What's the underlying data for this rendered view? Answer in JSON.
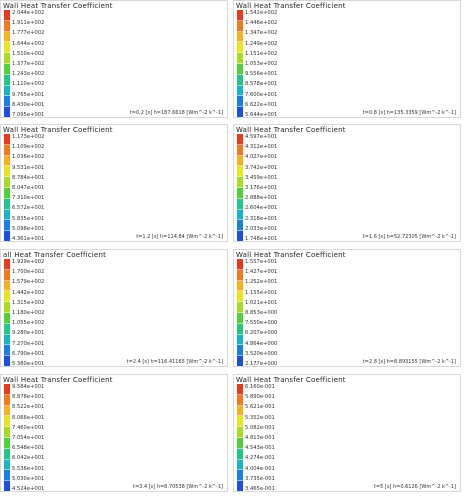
{
  "legend_colors": [
    "#e83a1d",
    "#f07a1c",
    "#f6b21e",
    "#e8e41f",
    "#a8dc24",
    "#52d03c",
    "#22c58a",
    "#18b4c8",
    "#1a7ee4",
    "#1d4fde"
  ],
  "panels": [
    {
      "title": "Wall Heat Transfer Coefficient",
      "caption": "t=0.2 [s] h=187.6618 [Wm^-2 k^-1]",
      "ticks": [
        "2.044e+002",
        "1.911e+002",
        "1.777e+002",
        "1.644e+002",
        "1.510e+002",
        "1.377e+002",
        "1.243e+002",
        "1.110e+002",
        "9.765e+001",
        "8.430e+001",
        "7.095e+001"
      ]
    },
    {
      "title": "Wall Heat Transfer Coefficient",
      "caption": "t=0.8 [s] h=135.3359 [Wm^-2 k^-1]",
      "ticks": [
        "1.542e+002",
        "1.446e+002",
        "1.347e+002",
        "1.249e+002",
        "1.151e+002",
        "1.053e+002",
        "9.556e+001",
        "8.578e+001",
        "7.600e+001",
        "6.622e+001",
        "5.644e+001"
      ]
    },
    {
      "title": "Wall Heat Transfer Coefficient",
      "caption": "t=1.2 [s] h=114.84 [Wm^-2 k^-1]",
      "ticks": [
        "1.173e+002",
        "1.109e+002",
        "1.036e+002",
        "9.531e+001",
        "8.784e+001",
        "8.047e+001",
        "7.310e+001",
        "6.572e+001",
        "5.835e+001",
        "5.098e+001",
        "4.361e+001"
      ]
    },
    {
      "title": "Wall Heat Transfer Coefficient",
      "caption": "t=1.6 [s] h=52.72305 [Wm^-2 k^-1]",
      "ticks": [
        "4.597e+001",
        "4.312e+001",
        "4.027e+001",
        "3.742e+001",
        "3.459e+001",
        "3.176e+001",
        "2.888e+001",
        "2.604e+001",
        "2.318e+001",
        "2.033e+001",
        "1.748e+001"
      ]
    },
    {
      "title": "all Heat Transfer Coefficient",
      "caption": "t=2.4 [s] h=116.41165 [Wm^-2 k^-1]",
      "ticks": [
        "1.929e+002",
        "1.700e+002",
        "1.579e+002",
        "1.442e+002",
        "1.315e+002",
        "1.180e+002",
        "1.055e+002",
        "9.280e+001",
        "7.270e+001",
        "6.790e+001",
        "5.380e+001"
      ]
    },
    {
      "title": "Wall Heat Transfer Coefficient",
      "caption": "t=2.8 [s] h=8.893155 [Wm^-2 k^-1]",
      "ticks": [
        "1.557e+001",
        "1.427e+001",
        "1.252e+001",
        "1.155e+001",
        "1.021e+001",
        "8.853e+000",
        "7.550e+000",
        "6.207e+000",
        "4.864e+000",
        "3.520e+000",
        "2.177e+000"
      ]
    },
    {
      "title": "Wall Heat Transfer Coefficient",
      "caption": "t=3.4 [s] h=8.70538 [Wm^-2 k^-1]",
      "ticks": [
        "9.584e+001",
        "8.878e+001",
        "8.522e+001",
        "8.066e+001",
        "7.460e+001",
        "7.054e+001",
        "6.548e+001",
        "6.042e+001",
        "5.536e+001",
        "5.030e+001",
        "4.524e+001"
      ]
    },
    {
      "title": "Wall Heat Transfer Coefficient",
      "caption": "t=5 [s] h=0.6126 [Wm^-2 k^-1]",
      "ticks": [
        "6.160e-001",
        "5.890e-001",
        "5.621e-001",
        "5.352e-001",
        "5.082e-001",
        "4.813e-001",
        "4.543e-001",
        "4.274e-001",
        "4.004e-001",
        "3.735e-001",
        "3.465e-001"
      ]
    }
  ]
}
